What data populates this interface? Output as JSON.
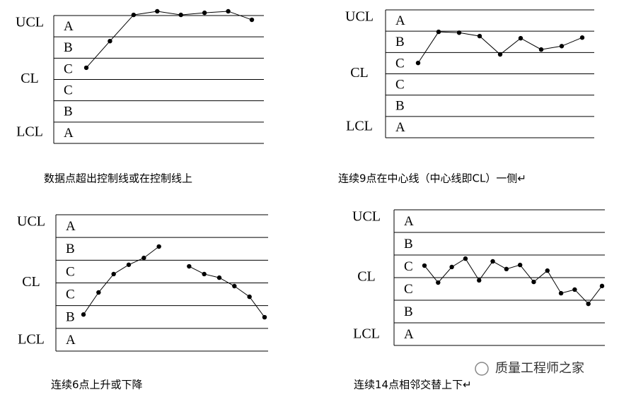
{
  "chart_data": [
    {
      "type": "line",
      "caption": "数据点超出控制线或在控制线上",
      "ylim": [
        0,
        6
      ],
      "yticks": [
        {
          "value": 6,
          "label": "UCL"
        },
        {
          "value": 3,
          "label": "CL"
        },
        {
          "value": 0,
          "label": "LCL"
        }
      ],
      "zone_labels": [
        "A",
        "B",
        "C",
        "C",
        "B",
        "A"
      ],
      "categories": [
        null,
        null,
        null,
        null,
        null,
        null,
        null,
        null
      ],
      "values": [
        3.55,
        4.8,
        6.03,
        6.2,
        6.03,
        6.13,
        6.2,
        5.8
      ],
      "color": "#000000"
    },
    {
      "type": "line",
      "caption": "连续9点在中心线（中心线即CL）一侧↵",
      "ylim": [
        0,
        6
      ],
      "yticks": [
        {
          "value": 6,
          "label": "UCL"
        },
        {
          "value": 3,
          "label": "CL"
        },
        {
          "value": 0,
          "label": "LCL"
        }
      ],
      "zone_labels": [
        "A",
        "B",
        "C",
        "C",
        "B",
        "A"
      ],
      "categories": [
        null,
        null,
        null,
        null,
        null,
        null,
        null,
        null,
        null
      ],
      "values": [
        3.51,
        4.97,
        4.93,
        4.77,
        3.91,
        4.67,
        4.14,
        4.3,
        4.7
      ],
      "color": "#000000"
    },
    {
      "type": "line",
      "caption": "连续6点上升或下降",
      "ylim": [
        0,
        6
      ],
      "yticks": [
        {
          "value": 6,
          "label": "UCL"
        },
        {
          "value": 3,
          "label": "CL"
        },
        {
          "value": 0,
          "label": "LCL"
        }
      ],
      "zone_labels": [
        "A",
        "B",
        "C",
        "C",
        "B",
        "A"
      ],
      "categories": [
        null,
        null,
        null,
        null,
        null,
        null,
        null,
        null,
        null,
        null,
        null,
        null,
        null
      ],
      "values": [
        1.61,
        2.58,
        3.39,
        3.8,
        4.1,
        4.6,
        null,
        3.73,
        3.39,
        3.23,
        2.86,
        2.39,
        1.49
      ],
      "color": "#000000"
    },
    {
      "type": "line",
      "caption": "连续14点相邻交替上下↵",
      "ylim": [
        0,
        6
      ],
      "yticks": [
        {
          "value": 6,
          "label": "UCL"
        },
        {
          "value": 3,
          "label": "CL"
        },
        {
          "value": 0,
          "label": "LCL"
        }
      ],
      "zone_labels": [
        "A",
        "B",
        "C",
        "C",
        "B",
        "A"
      ],
      "categories": [
        null,
        null,
        null,
        null,
        null,
        null,
        null,
        null,
        null,
        null,
        null,
        null,
        null,
        null
      ],
      "values": [
        3.53,
        2.78,
        3.47,
        3.84,
        2.88,
        3.72,
        3.38,
        3.56,
        2.81,
        3.31,
        2.31,
        2.47,
        1.84,
        2.63
      ],
      "color": "#000000"
    }
  ],
  "watermark": "质量工程师之家"
}
